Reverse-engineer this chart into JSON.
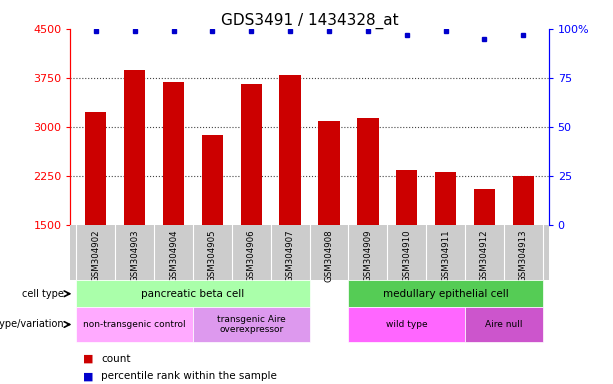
{
  "title": "GDS3491 / 1434328_at",
  "samples": [
    "GSM304902",
    "GSM304903",
    "GSM304904",
    "GSM304905",
    "GSM304906",
    "GSM304907",
    "GSM304908",
    "GSM304909",
    "GSM304910",
    "GSM304911",
    "GSM304912",
    "GSM304913"
  ],
  "counts": [
    3220,
    3870,
    3680,
    2880,
    3660,
    3790,
    3090,
    3140,
    2330,
    2300,
    2050,
    2240
  ],
  "percentile_ranks": [
    99,
    99,
    99,
    99,
    99,
    99,
    99,
    99,
    97,
    99,
    95,
    97
  ],
  "ylim_left": [
    1500,
    4500
  ],
  "ylim_right": [
    0,
    100
  ],
  "yticks_left": [
    1500,
    2250,
    3000,
    3750,
    4500
  ],
  "yticks_right": [
    0,
    25,
    50,
    75,
    100
  ],
  "bar_color": "#cc0000",
  "dot_color": "#0000cc",
  "sample_row_color": "#cccccc",
  "cell_types": [
    {
      "label": "pancreatic beta cell",
      "x_start": -0.5,
      "x_end": 5.5,
      "color": "#aaffaa"
    },
    {
      "label": "medullary epithelial cell",
      "x_start": 6.5,
      "x_end": 11.5,
      "color": "#55cc55"
    }
  ],
  "genotypes": [
    {
      "label": "non-transgenic control",
      "x_start": -0.5,
      "x_end": 2.5,
      "color": "#ffaaff"
    },
    {
      "label": "transgenic Aire\noverexpressor",
      "x_start": 2.5,
      "x_end": 5.5,
      "color": "#dd99ee"
    },
    {
      "label": "wild type",
      "x_start": 6.5,
      "x_end": 9.5,
      "color": "#ff66ff"
    },
    {
      "label": "Aire null",
      "x_start": 9.5,
      "x_end": 11.5,
      "color": "#cc55cc"
    }
  ],
  "legend_count_color": "#cc0000",
  "legend_pct_color": "#0000cc",
  "grid_color": "#444444",
  "title_fontsize": 11,
  "tick_fontsize": 8,
  "label_fontsize": 7,
  "bar_width": 0.55,
  "xlim": [
    -0.65,
    11.65
  ]
}
